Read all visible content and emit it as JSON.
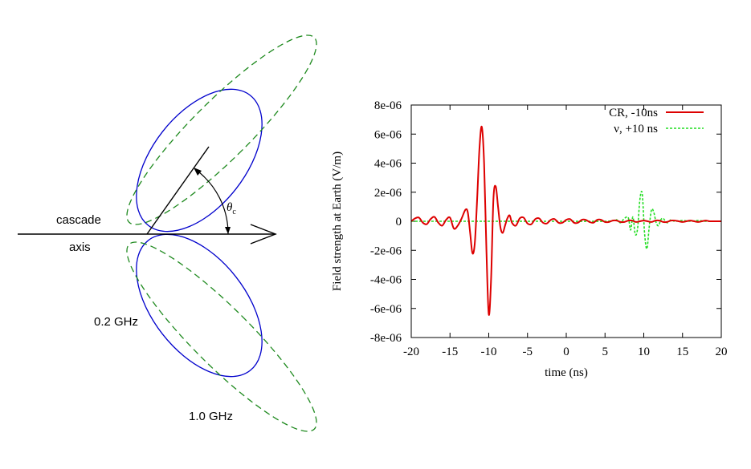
{
  "diagram": {
    "axis_label_line1": "cascade",
    "axis_label_line2": "axis",
    "angle_label": "θ",
    "angle_label_sub": "c",
    "freq_low_label": "0.2 GHz",
    "freq_high_label": "1.0 GHz",
    "colors": {
      "low": "#0000cc",
      "high": "#1f8a1f",
      "axis": "#000000"
    }
  },
  "chart_data": {
    "type": "line",
    "xlabel": "time (ns)",
    "ylabel": "Field strength at Earth (V/m)",
    "xlim": [
      -20,
      20
    ],
    "ylim": [
      -8e-06,
      8e-06
    ],
    "xticks": [
      -20,
      -15,
      -10,
      -5,
      0,
      5,
      10,
      15,
      20
    ],
    "xtick_labels": [
      "-20",
      "-15",
      "-10",
      "-5",
      "0",
      "5",
      "10",
      "15",
      "20"
    ],
    "yticks": [
      -8e-06,
      -6e-06,
      -4e-06,
      -2e-06,
      0,
      2e-06,
      4e-06,
      6e-06,
      8e-06
    ],
    "ytick_labels": [
      "-8e-06",
      "-6e-06",
      "-4e-06",
      "-2e-06",
      "0",
      "2e-06",
      "4e-06",
      "6e-06",
      "8e-06"
    ],
    "legend_position": "top-right",
    "series": [
      {
        "name": "CR, -10ns",
        "color": "#dd0000",
        "style": "solid",
        "x": [
          -20,
          -19.5,
          -19,
          -18.5,
          -18,
          -17.5,
          -17,
          -16.5,
          -16,
          -15.5,
          -15,
          -14.5,
          -14,
          -13.5,
          -13,
          -12.7,
          -12.4,
          -12.1,
          -11.8,
          -11.5,
          -11.2,
          -10.9,
          -10.6,
          -10.3,
          -10,
          -9.7,
          -9.4,
          -9.1,
          -8.8,
          -8.5,
          -8.2,
          -7.9,
          -7.6,
          -7.3,
          -7,
          -6.5,
          -6,
          -5.5,
          -5,
          -4.5,
          -4,
          -3.5,
          -3,
          -2.5,
          -2,
          -1.5,
          -1,
          -0.5,
          0,
          0.5,
          1,
          1.5,
          2,
          2.5,
          3,
          3.5,
          4,
          4.5,
          5,
          5.5,
          6,
          6.5,
          7,
          7.5,
          8,
          8.5,
          9,
          9.5,
          10,
          10.5,
          11,
          11.5,
          12,
          12.5,
          13,
          13.5,
          14,
          14.5,
          15,
          15.5,
          16,
          16.5,
          17,
          17.5,
          18,
          18.5,
          19,
          19.5,
          20
        ],
        "y": [
          0,
          2e-07,
          2.5e-07,
          -1e-07,
          -2e-07,
          1.5e-07,
          3e-07,
          -1e-07,
          -3e-07,
          1e-07,
          2.5e-07,
          -5e-07,
          -3e-07,
          2e-07,
          8e-07,
          6e-07,
          -8e-07,
          -2.2e-06,
          -1.5e-06,
          1.5e-06,
          5e-06,
          6.5e-06,
          4e-06,
          -2e-06,
          -6.4e-06,
          -4e-06,
          1.5e-06,
          2.4e-06,
          1e-06,
          -4e-07,
          -8e-07,
          -3e-07,
          2e-07,
          4e-07,
          -1e-07,
          -3e-07,
          2e-07,
          2.5e-07,
          -1.5e-07,
          -2e-07,
          1.5e-07,
          2e-07,
          -1e-07,
          -1.5e-07,
          1e-07,
          1.5e-07,
          -1e-07,
          -1e-07,
          1e-07,
          1.5e-07,
          -1e-07,
          -1e-07,
          1e-07,
          1e-07,
          -5e-08,
          -1e-07,
          1e-07,
          1e-07,
          -5e-08,
          -5e-08,
          5e-08,
          5e-08,
          -5e-08,
          -5e-08,
          5e-08,
          5e-08,
          -5e-08,
          0,
          5e-08,
          0,
          -5e-08,
          5e-08,
          5e-08,
          -5e-08,
          -5e-08,
          5e-08,
          5e-08,
          0,
          -5e-08,
          0,
          5e-08,
          0,
          -5e-08,
          0,
          5e-08,
          0,
          0,
          0,
          0
        ]
      },
      {
        "name": "ν, +10 ns",
        "color": "#22dd22",
        "style": "dashed",
        "x": [
          -20,
          -15,
          -10,
          -5,
          0,
          5,
          6,
          6.5,
          7,
          7.5,
          8,
          8.3,
          8.6,
          8.9,
          9.2,
          9.5,
          9.8,
          10.1,
          10.4,
          10.7,
          11,
          11.3,
          11.6,
          11.9,
          12.2,
          12.5,
          13,
          13.5,
          14,
          15,
          16,
          17,
          18,
          19,
          20
        ],
        "y": [
          0,
          0,
          0,
          0,
          0,
          0,
          5e-08,
          1e-07,
          -1e-07,
          2e-07,
          2.5e-07,
          -6e-07,
          3e-07,
          -9e-07,
          -5e-07,
          1.5e-06,
          1.9e-06,
          -8e-07,
          -1.9e-06,
          -4e-07,
          8e-07,
          6e-07,
          -1e-07,
          -3e-07,
          1e-07,
          2e-07,
          -1e-07,
          1e-07,
          0,
          5e-08,
          0,
          5e-08,
          0,
          0,
          0
        ]
      }
    ]
  }
}
